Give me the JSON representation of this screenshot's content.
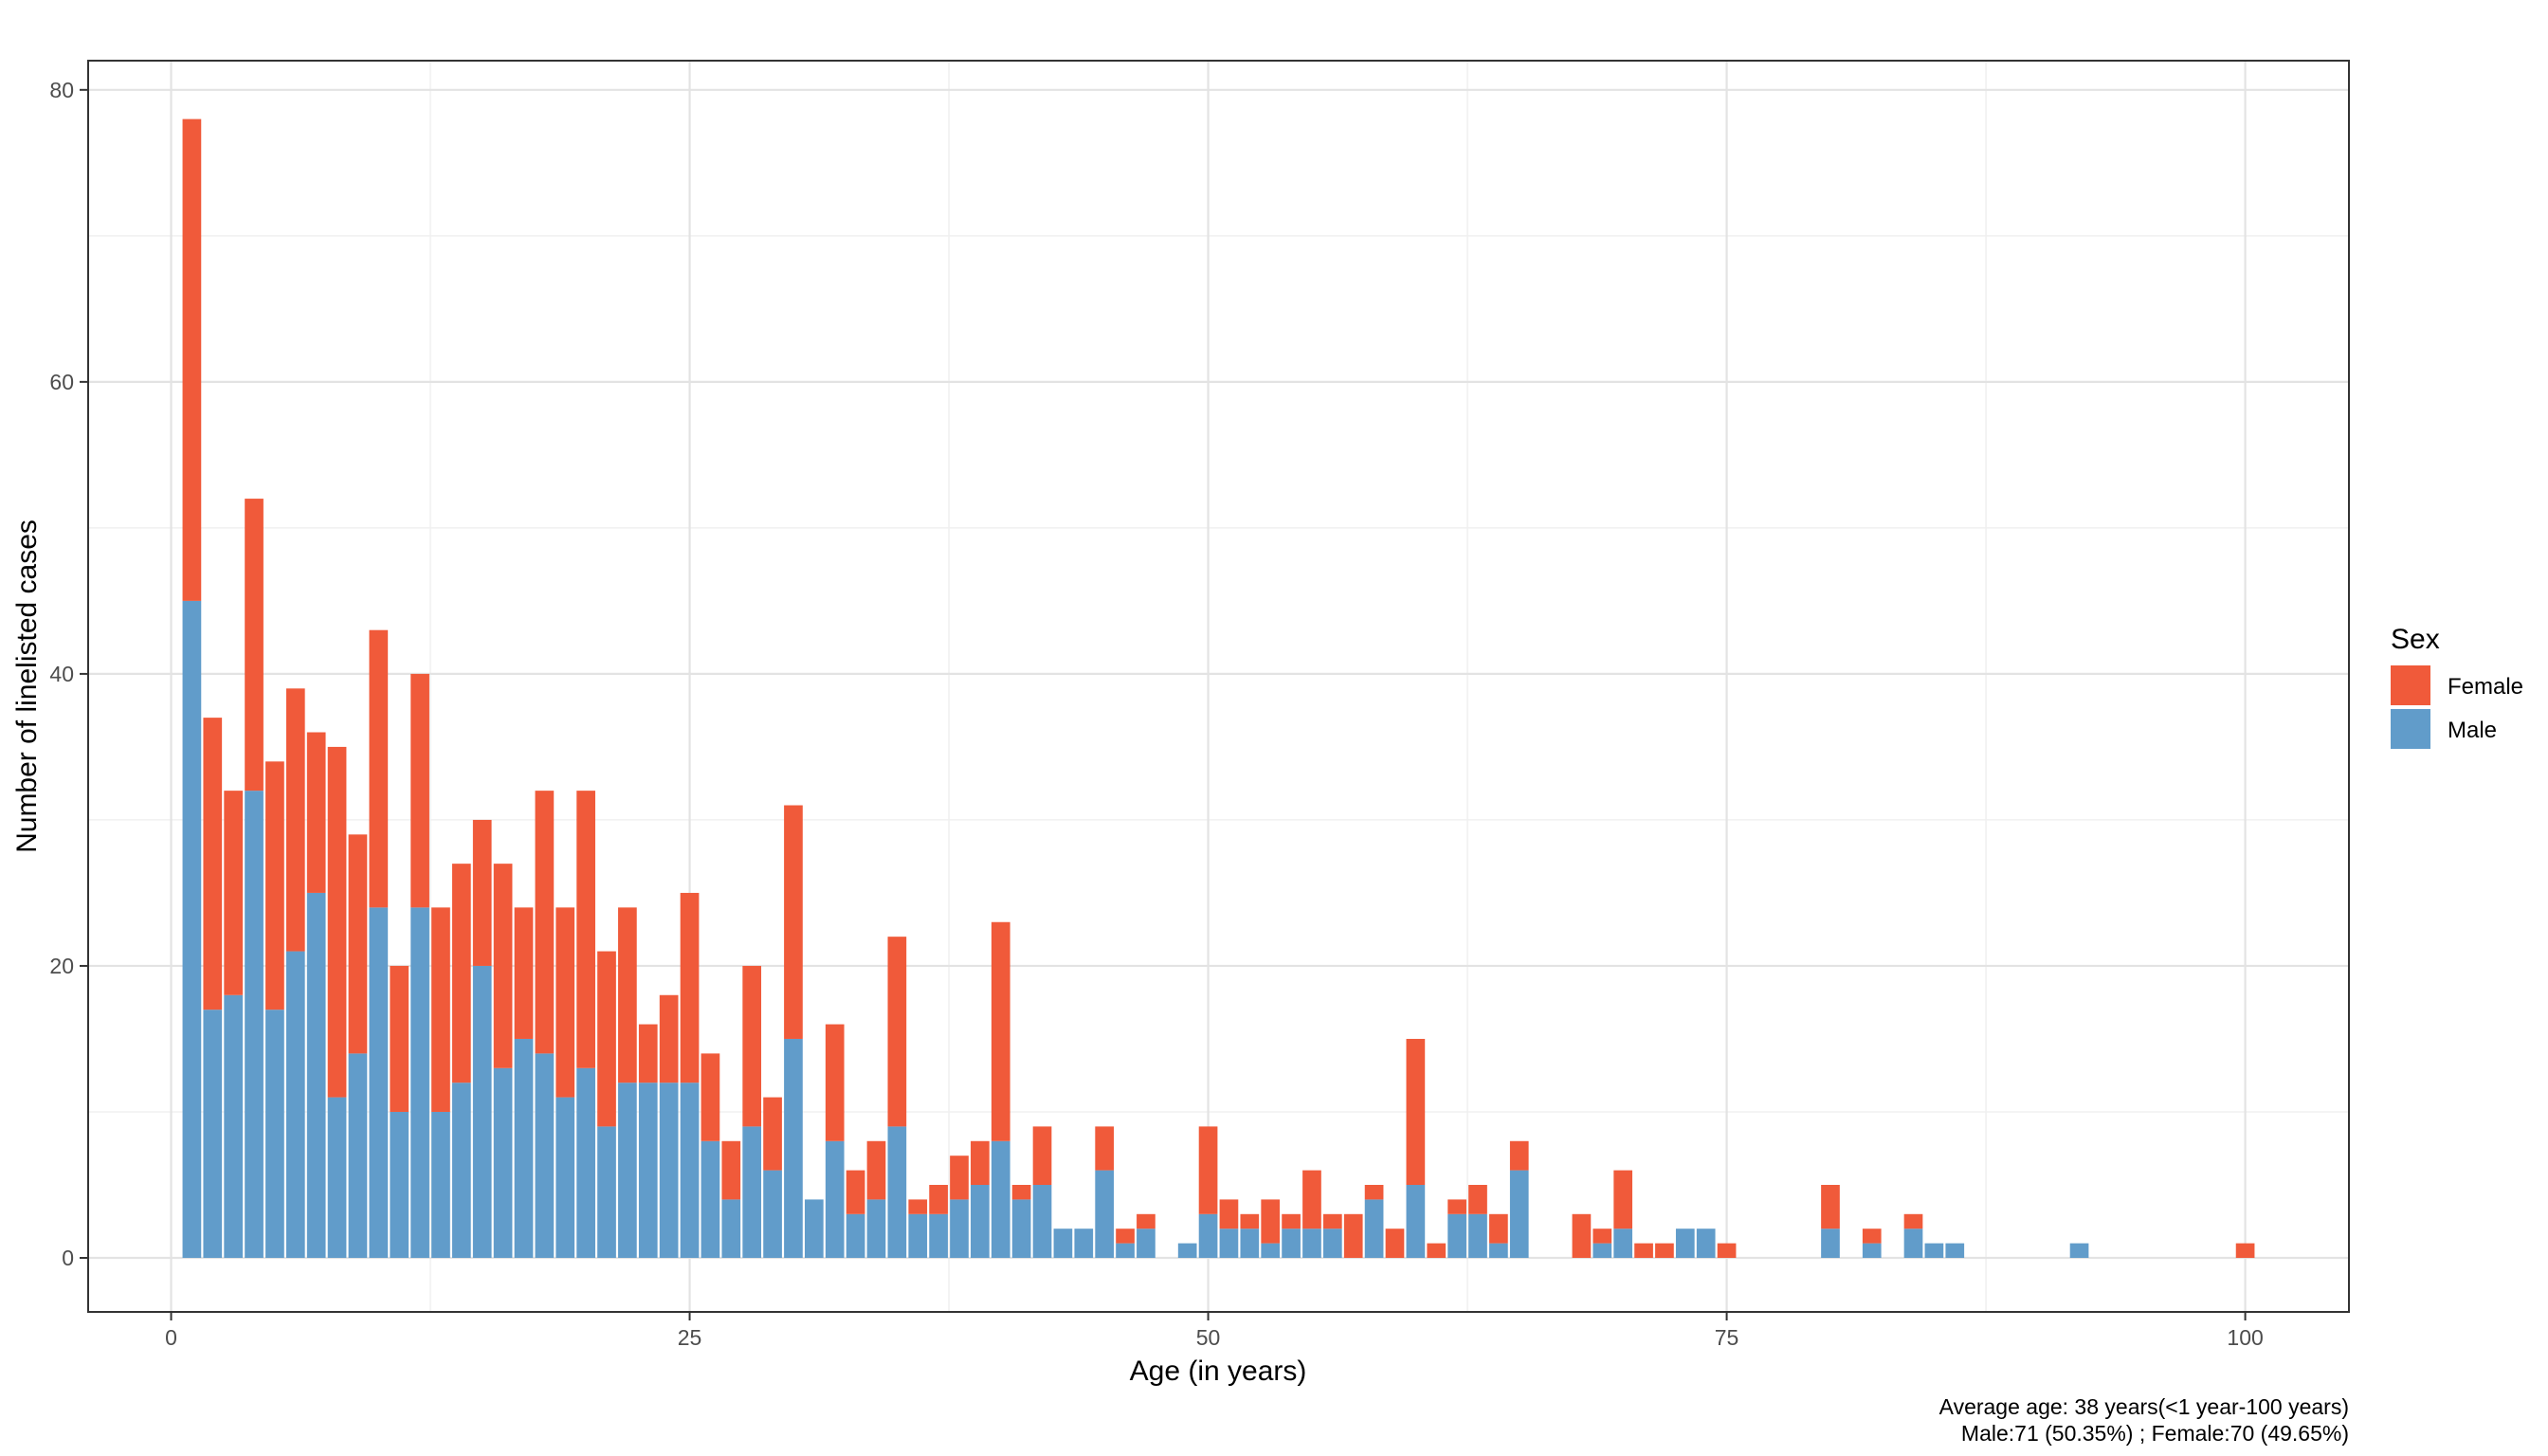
{
  "chart_data": {
    "type": "bar",
    "stacked": true,
    "xlabel": "Age (in years)",
    "ylabel": "Number of linelisted cases",
    "xlim": [
      -4,
      105
    ],
    "ylim": [
      -3.7,
      82
    ],
    "x_ticks": [
      0,
      25,
      50,
      75,
      100
    ],
    "y_ticks": [
      0,
      20,
      40,
      60,
      80
    ],
    "grid": true,
    "legend": {
      "title": "Sex",
      "position": "right"
    },
    "series": [
      {
        "name": "Male",
        "color": "#619CCA",
        "points": [
          [
            1,
            45
          ],
          [
            2,
            17
          ],
          [
            3,
            18
          ],
          [
            4,
            32
          ],
          [
            5,
            17
          ],
          [
            6,
            21
          ],
          [
            7,
            25
          ],
          [
            8,
            11
          ],
          [
            9,
            14
          ],
          [
            10,
            24
          ],
          [
            11,
            10
          ],
          [
            12,
            24
          ],
          [
            13,
            10
          ],
          [
            14,
            12
          ],
          [
            15,
            20
          ],
          [
            16,
            13
          ],
          [
            17,
            15
          ],
          [
            18,
            14
          ],
          [
            19,
            11
          ],
          [
            20,
            13
          ],
          [
            21,
            9
          ],
          [
            22,
            12
          ],
          [
            23,
            12
          ],
          [
            24,
            12
          ],
          [
            25,
            12
          ],
          [
            26,
            8
          ],
          [
            27,
            4
          ],
          [
            28,
            9
          ],
          [
            29,
            6
          ],
          [
            30,
            15
          ],
          [
            31,
            4
          ],
          [
            32,
            8
          ],
          [
            33,
            3
          ],
          [
            34,
            4
          ],
          [
            35,
            9
          ],
          [
            36,
            3
          ],
          [
            37,
            3
          ],
          [
            38,
            4
          ],
          [
            39,
            5
          ],
          [
            40,
            8
          ],
          [
            41,
            4
          ],
          [
            42,
            5
          ],
          [
            43,
            2
          ],
          [
            44,
            2
          ],
          [
            45,
            6
          ],
          [
            46,
            1
          ],
          [
            47,
            2
          ],
          [
            49,
            1
          ],
          [
            50,
            3
          ],
          [
            51,
            2
          ],
          [
            52,
            2
          ],
          [
            53,
            1
          ],
          [
            54,
            2
          ],
          [
            55,
            2
          ],
          [
            56,
            2
          ],
          [
            58,
            4
          ],
          [
            60,
            5
          ],
          [
            62,
            3
          ],
          [
            63,
            3
          ],
          [
            64,
            1
          ],
          [
            65,
            6
          ],
          [
            69,
            1
          ],
          [
            70,
            2
          ],
          [
            73,
            2
          ],
          [
            74,
            2
          ],
          [
            80,
            2
          ],
          [
            82,
            1
          ],
          [
            84,
            2
          ],
          [
            85,
            1
          ],
          [
            86,
            1
          ],
          [
            92,
            1
          ]
        ]
      },
      {
        "name": "Female",
        "color": "#F05A3A",
        "points": [
          [
            1,
            33
          ],
          [
            2,
            20
          ],
          [
            3,
            14
          ],
          [
            4,
            20
          ],
          [
            5,
            17
          ],
          [
            6,
            18
          ],
          [
            7,
            11
          ],
          [
            8,
            24
          ],
          [
            9,
            15
          ],
          [
            10,
            19
          ],
          [
            11,
            10
          ],
          [
            12,
            16
          ],
          [
            13,
            14
          ],
          [
            14,
            15
          ],
          [
            15,
            10
          ],
          [
            16,
            14
          ],
          [
            17,
            9
          ],
          [
            18,
            18
          ],
          [
            19,
            13
          ],
          [
            20,
            19
          ],
          [
            21,
            12
          ],
          [
            22,
            12
          ],
          [
            23,
            4
          ],
          [
            24,
            6
          ],
          [
            25,
            13
          ],
          [
            26,
            6
          ],
          [
            27,
            4
          ],
          [
            28,
            11
          ],
          [
            29,
            5
          ],
          [
            30,
            16
          ],
          [
            32,
            8
          ],
          [
            33,
            3
          ],
          [
            34,
            4
          ],
          [
            35,
            13
          ],
          [
            36,
            1
          ],
          [
            37,
            2
          ],
          [
            38,
            3
          ],
          [
            39,
            3
          ],
          [
            40,
            15
          ],
          [
            41,
            1
          ],
          [
            42,
            4
          ],
          [
            45,
            3
          ],
          [
            46,
            1
          ],
          [
            47,
            1
          ],
          [
            50,
            6
          ],
          [
            51,
            2
          ],
          [
            52,
            1
          ],
          [
            53,
            3
          ],
          [
            54,
            1
          ],
          [
            55,
            4
          ],
          [
            56,
            1
          ],
          [
            57,
            3
          ],
          [
            58,
            1
          ],
          [
            59,
            2
          ],
          [
            60,
            10
          ],
          [
            61,
            1
          ],
          [
            62,
            1
          ],
          [
            63,
            2
          ],
          [
            64,
            2
          ],
          [
            65,
            2
          ],
          [
            68,
            3
          ],
          [
            69,
            1
          ],
          [
            70,
            4
          ],
          [
            71,
            1
          ],
          [
            72,
            1
          ],
          [
            75,
            1
          ],
          [
            80,
            3
          ],
          [
            82,
            1
          ],
          [
            84,
            1
          ],
          [
            100,
            1
          ]
        ]
      }
    ],
    "caption": [
      "Average age: 38 years(<1 year-100 years)",
      "Male:71 (50.35%) ; Female:70 (49.65%)"
    ]
  }
}
